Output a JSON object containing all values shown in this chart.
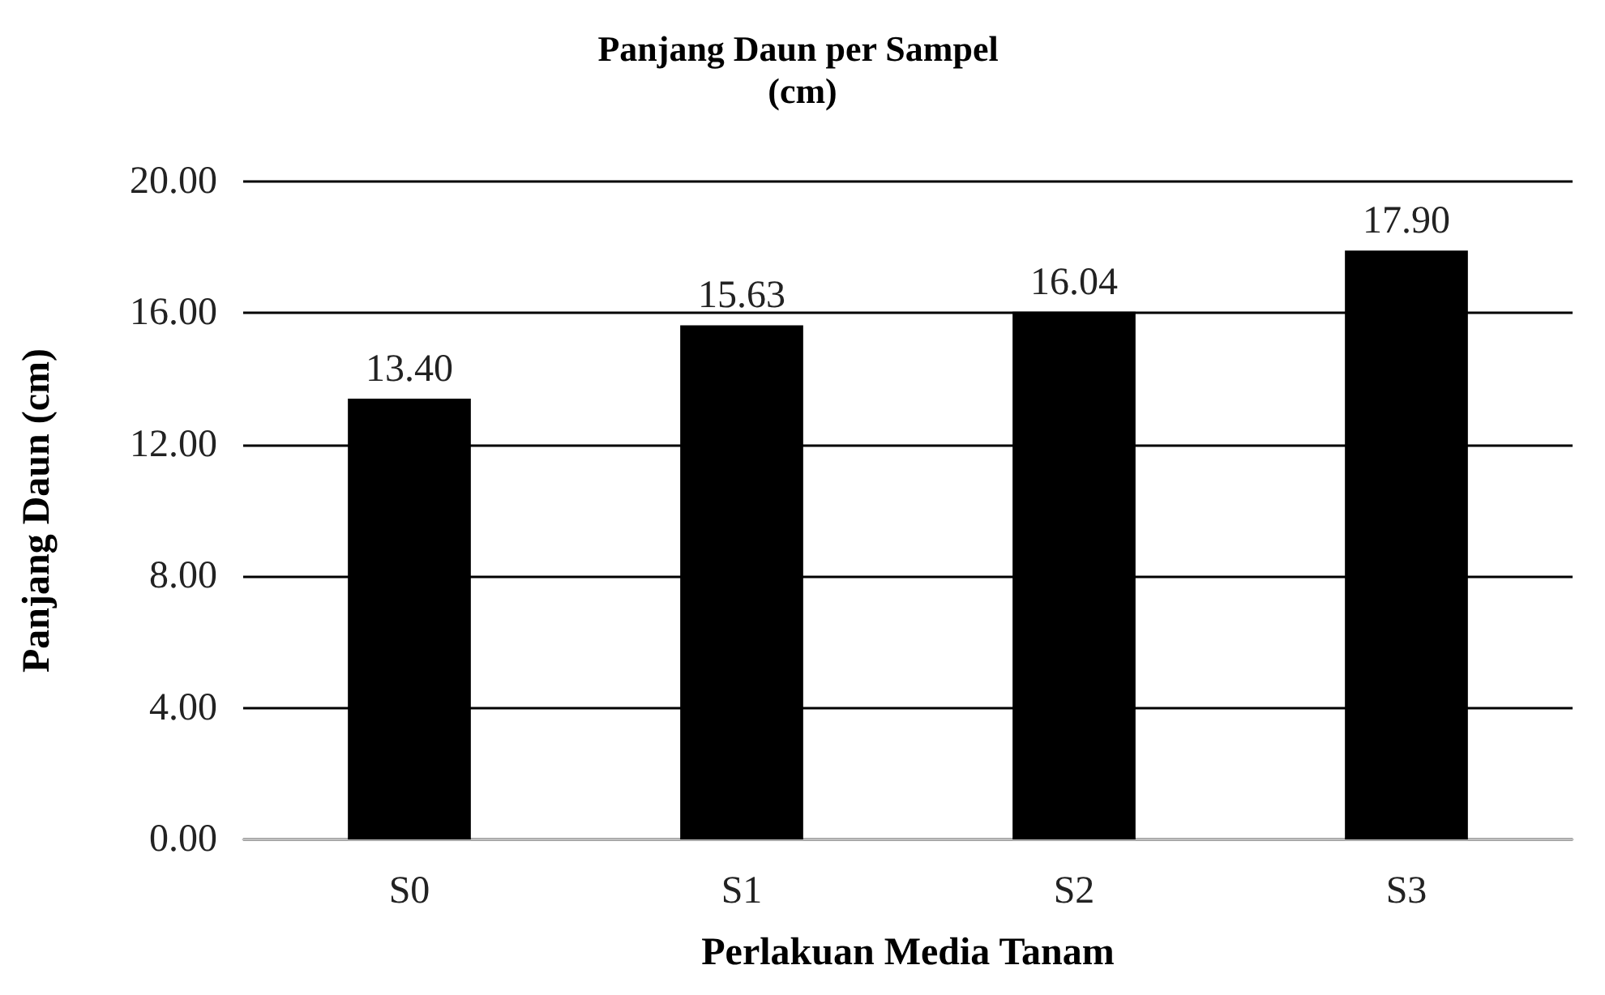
{
  "chart_data": {
    "type": "bar",
    "title": "Panjang Daun per Sampel (cm)",
    "xlabel": "Perlakuan Media Tanam",
    "ylabel": "Panjang Daun (cm)",
    "categories": [
      "S0",
      "S1",
      "S2",
      "S3"
    ],
    "values": [
      13.4,
      15.63,
      16.04,
      17.9
    ],
    "value_labels": [
      "13.40",
      "15.63",
      "16.04",
      "17.90"
    ],
    "color": "#000000",
    "ylim": [
      0,
      20
    ],
    "yticks": [
      {
        "value": 0,
        "label": "0.00"
      },
      {
        "value": 4,
        "label": "4.00"
      },
      {
        "value": 8,
        "label": "8.00"
      },
      {
        "value": 12,
        "label": "12.00"
      },
      {
        "value": 16,
        "label": "16.00"
      },
      {
        "value": 20,
        "label": "20.00"
      }
    ],
    "grid": "y"
  }
}
